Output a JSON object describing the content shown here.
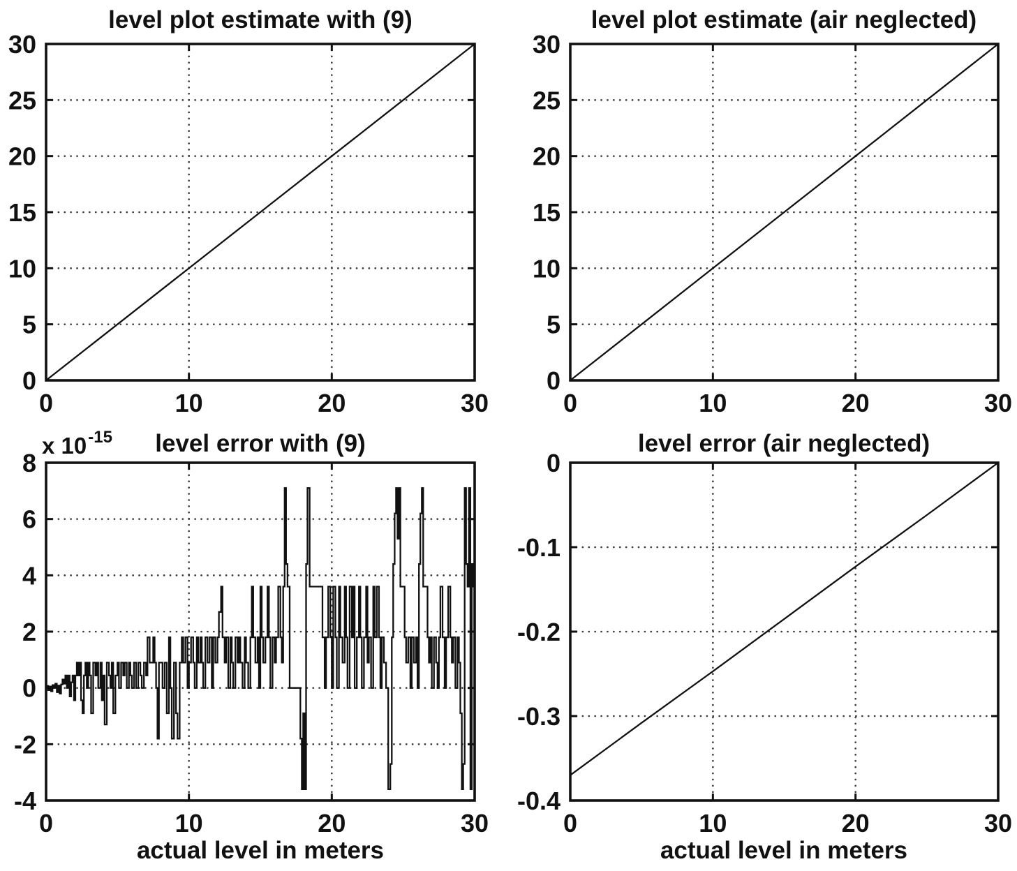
{
  "figure": {
    "background": "#ffffff",
    "ink_color": "#111111",
    "grid_color": "#3a3a3a"
  },
  "chart_data": [
    {
      "id": "level-plot-estimate-with-9",
      "type": "line",
      "title": "level plot estimate with (9)",
      "xlabel": "",
      "ylabel": "",
      "xlim": [
        0,
        30
      ],
      "ylim": [
        0,
        30
      ],
      "xticks": [
        0,
        10,
        20,
        30
      ],
      "yticks": [
        0,
        5,
        10,
        15,
        20,
        25,
        30
      ],
      "grid": true,
      "legend": "none",
      "series": [
        {
          "x": [
            0,
            5,
            10,
            15,
            20,
            25,
            30
          ],
          "y": [
            0,
            5,
            10,
            15,
            20,
            25,
            30
          ]
        }
      ]
    },
    {
      "id": "level-plot-estimate-air-neglected",
      "type": "line",
      "title": "level plot estimate (air neglected)",
      "xlabel": "",
      "ylabel": "",
      "xlim": [
        0,
        30
      ],
      "ylim": [
        0,
        30
      ],
      "xticks": [
        0,
        10,
        20,
        30
      ],
      "yticks": [
        0,
        5,
        10,
        15,
        20,
        25,
        30
      ],
      "grid": true,
      "legend": "none",
      "series": [
        {
          "x": [
            0,
            5,
            10,
            15,
            20,
            25,
            30
          ],
          "y": [
            0,
            5,
            10,
            15,
            20,
            25,
            30
          ]
        }
      ]
    },
    {
      "id": "level-error-with-9",
      "type": "line",
      "render": "step",
      "title": "level error with (9)",
      "y_scale_base": "x 10",
      "y_scale_exp": "-15",
      "y_unit": "1e-15",
      "xlabel": "actual level in meters",
      "ylabel": "",
      "xlim": [
        0,
        30
      ],
      "ylim": [
        -4,
        8
      ],
      "xticks": [
        0,
        10,
        20,
        30
      ],
      "yticks": [
        -4,
        -2,
        0,
        2,
        4,
        6,
        8
      ],
      "grid": true,
      "legend": "none",
      "series": [
        {
          "points": [
            [
              0,
              0
            ],
            [
              0.08,
              0.07
            ],
            [
              0.15,
              -0.08
            ],
            [
              0.25,
              0.05
            ],
            [
              0.35,
              -0.12
            ],
            [
              0.45,
              0.1
            ],
            [
              0.55,
              0
            ],
            [
              0.65,
              0.15
            ],
            [
              0.75,
              -0.15
            ],
            [
              0.85,
              0.08
            ],
            [
              0.95,
              -0.2
            ],
            [
              1.05,
              0.12
            ],
            [
              1.15,
              0.3
            ],
            [
              1.25,
              0.15
            ],
            [
              1.35,
              0.44
            ],
            [
              1.45,
              0
            ],
            [
              1.55,
              0.44
            ],
            [
              1.65,
              -0.3
            ],
            [
              1.75,
              0.2
            ],
            [
              1.85,
              0.44
            ],
            [
              1.95,
              -0.44
            ],
            [
              2.05,
              0.44
            ],
            [
              2.15,
              0.9
            ],
            [
              2.25,
              0.44
            ],
            [
              2.35,
              0.9
            ],
            [
              2.45,
              -0.44
            ],
            [
              2.55,
              -0.9
            ],
            [
              2.65,
              0.44
            ],
            [
              2.75,
              0.9
            ],
            [
              2.85,
              0
            ],
            [
              2.95,
              0.9
            ],
            [
              3.05,
              0.44
            ],
            [
              3.15,
              -0.9
            ],
            [
              3.3,
              0.9
            ],
            [
              3.45,
              0.44
            ],
            [
              3.55,
              0.9
            ],
            [
              3.65,
              0
            ],
            [
              3.8,
              0.9
            ],
            [
              3.9,
              -0.44
            ],
            [
              4.0,
              0.44
            ],
            [
              4.1,
              -1.3
            ],
            [
              4.25,
              0.9
            ],
            [
              4.4,
              0.44
            ],
            [
              4.5,
              0
            ],
            [
              4.6,
              0.9
            ],
            [
              4.7,
              -0.9
            ],
            [
              4.85,
              0.44
            ],
            [
              5.0,
              0.9
            ],
            [
              5.1,
              0
            ],
            [
              5.25,
              0.9
            ],
            [
              5.4,
              0.44
            ],
            [
              5.5,
              0.9
            ],
            [
              5.65,
              0
            ],
            [
              5.8,
              0.9
            ],
            [
              5.9,
              0.44
            ],
            [
              6.0,
              0
            ],
            [
              6.15,
              0.9
            ],
            [
              6.3,
              0
            ],
            [
              6.45,
              0.9
            ],
            [
              6.6,
              0.44
            ],
            [
              6.7,
              0
            ],
            [
              6.85,
              0.9
            ],
            [
              7.0,
              0.44
            ],
            [
              7.1,
              1.8
            ],
            [
              7.25,
              0.9
            ],
            [
              7.4,
              0.9
            ],
            [
              7.5,
              1.8
            ],
            [
              7.6,
              0.9
            ],
            [
              7.7,
              0
            ],
            [
              7.8,
              -1.8
            ],
            [
              7.9,
              0.9
            ],
            [
              8.0,
              0.9
            ],
            [
              8.15,
              0
            ],
            [
              8.3,
              0.9
            ],
            [
              8.45,
              -0.9
            ],
            [
              8.6,
              1.8
            ],
            [
              8.7,
              0
            ],
            [
              8.8,
              -1.8
            ],
            [
              8.95,
              0.9
            ],
            [
              9.1,
              -0.9
            ],
            [
              9.2,
              -1.8
            ],
            [
              9.35,
              0.9
            ],
            [
              9.5,
              1.8
            ],
            [
              9.6,
              0.9
            ],
            [
              9.75,
              1.8
            ],
            [
              9.9,
              0
            ],
            [
              10.0,
              0.9
            ],
            [
              10.15,
              1.8
            ],
            [
              10.3,
              0.9
            ],
            [
              10.4,
              0
            ],
            [
              10.55,
              1.8
            ],
            [
              10.65,
              0.9
            ],
            [
              10.8,
              1.8
            ],
            [
              10.9,
              0.9
            ],
            [
              11.0,
              0
            ],
            [
              11.15,
              1.8
            ],
            [
              11.3,
              0.9
            ],
            [
              11.45,
              1.8
            ],
            [
              11.6,
              0
            ],
            [
              11.7,
              1.8
            ],
            [
              11.85,
              0.9
            ],
            [
              12.0,
              1.8
            ],
            [
              12.1,
              2.7
            ],
            [
              12.25,
              3.6
            ],
            [
              12.35,
              1.8
            ],
            [
              12.5,
              0.9
            ],
            [
              12.6,
              1.8
            ],
            [
              12.75,
              0
            ],
            [
              12.9,
              1.8
            ],
            [
              13.0,
              0.9
            ],
            [
              13.1,
              0
            ],
            [
              13.25,
              1.8
            ],
            [
              13.4,
              0.9
            ],
            [
              13.5,
              1.8
            ],
            [
              13.6,
              0.9
            ],
            [
              13.75,
              0
            ],
            [
              13.9,
              1.8
            ],
            [
              14.0,
              0.9
            ],
            [
              14.15,
              0
            ],
            [
              14.3,
              1.8
            ],
            [
              14.4,
              3.6
            ],
            [
              14.5,
              1.8
            ],
            [
              14.65,
              0.9
            ],
            [
              14.8,
              1.8
            ],
            [
              14.9,
              0
            ],
            [
              15.0,
              3.6
            ],
            [
              15.1,
              1.8
            ],
            [
              15.2,
              0.9
            ],
            [
              15.35,
              1.8
            ],
            [
              15.5,
              3.6
            ],
            [
              15.6,
              1.8
            ],
            [
              15.7,
              0
            ],
            [
              15.85,
              1.8
            ],
            [
              16.0,
              0.9
            ],
            [
              16.1,
              1.8
            ],
            [
              16.25,
              3.6
            ],
            [
              16.4,
              1.8
            ],
            [
              16.5,
              0.9
            ],
            [
              16.6,
              3.6
            ],
            [
              16.7,
              7.1
            ],
            [
              16.8,
              4.4
            ],
            [
              16.9,
              3.6
            ],
            [
              17.05,
              0
            ],
            [
              17.3,
              0
            ],
            [
              17.55,
              0
            ],
            [
              17.8,
              -1.8
            ],
            [
              17.9,
              -3.6
            ],
            [
              18.0,
              -0.9
            ],
            [
              18.1,
              -3.6
            ],
            [
              18.2,
              4.4
            ],
            [
              18.3,
              7.1
            ],
            [
              18.45,
              3.6
            ],
            [
              18.7,
              3.6
            ],
            [
              18.95,
              3.6
            ],
            [
              19.2,
              3.6
            ],
            [
              19.35,
              1.8
            ],
            [
              19.5,
              0
            ],
            [
              19.6,
              1.8
            ],
            [
              19.75,
              3.6
            ],
            [
              19.9,
              1.8
            ],
            [
              20.0,
              0
            ],
            [
              20.1,
              3.6
            ],
            [
              20.25,
              1.8
            ],
            [
              20.35,
              0
            ],
            [
              20.5,
              3.6
            ],
            [
              20.6,
              1.8
            ],
            [
              20.75,
              0.9
            ],
            [
              20.9,
              3.6
            ],
            [
              21.0,
              1.8
            ],
            [
              21.1,
              0
            ],
            [
              21.25,
              3.6
            ],
            [
              21.4,
              1.8
            ],
            [
              21.5,
              3.6
            ],
            [
              21.6,
              0
            ],
            [
              21.75,
              1.8
            ],
            [
              21.9,
              3.6
            ],
            [
              22.0,
              1.8
            ],
            [
              22.1,
              0
            ],
            [
              22.25,
              1.8
            ],
            [
              22.4,
              3.6
            ],
            [
              22.5,
              0.9
            ],
            [
              22.6,
              1.8
            ],
            [
              22.75,
              0
            ],
            [
              22.9,
              3.6
            ],
            [
              23.0,
              1.8
            ],
            [
              23.15,
              3.6
            ],
            [
              23.3,
              1.8
            ],
            [
              23.4,
              0
            ],
            [
              23.5,
              1.8
            ],
            [
              23.65,
              0.9
            ],
            [
              23.8,
              0
            ],
            [
              23.95,
              -3.6
            ],
            [
              24.1,
              -2.7
            ],
            [
              24.2,
              1.8
            ],
            [
              24.3,
              4.4
            ],
            [
              24.4,
              6.2
            ],
            [
              24.5,
              7.1
            ],
            [
              24.6,
              5.3
            ],
            [
              24.7,
              7.1
            ],
            [
              24.8,
              3.6
            ],
            [
              24.95,
              3.6
            ],
            [
              25.1,
              1.8
            ],
            [
              25.2,
              0.9
            ],
            [
              25.35,
              1.8
            ],
            [
              25.5,
              0
            ],
            [
              25.6,
              1.8
            ],
            [
              25.75,
              0.9
            ],
            [
              25.9,
              1.8
            ],
            [
              26.0,
              0
            ],
            [
              26.1,
              4.4
            ],
            [
              26.2,
              6.2
            ],
            [
              26.3,
              7.1
            ],
            [
              26.4,
              3.6
            ],
            [
              26.55,
              3.6
            ],
            [
              26.7,
              1.8
            ],
            [
              26.8,
              0.9
            ],
            [
              26.9,
              1.8
            ],
            [
              27.0,
              0
            ],
            [
              27.15,
              1.8
            ],
            [
              27.3,
              0.9
            ],
            [
              27.4,
              0
            ],
            [
              27.5,
              1.8
            ],
            [
              27.6,
              3.6
            ],
            [
              27.75,
              1.8
            ],
            [
              27.9,
              0
            ],
            [
              28.0,
              1.8
            ],
            [
              28.15,
              3.6
            ],
            [
              28.3,
              1.8
            ],
            [
              28.4,
              0.9
            ],
            [
              28.5,
              1.8
            ],
            [
              28.65,
              0
            ],
            [
              28.8,
              1.8
            ],
            [
              28.9,
              0.9
            ],
            [
              29.0,
              -0.9
            ],
            [
              29.1,
              -3.6
            ],
            [
              29.2,
              -2.7
            ],
            [
              29.3,
              7.1
            ],
            [
              29.4,
              4.4
            ],
            [
              29.5,
              3.6
            ],
            [
              29.6,
              7.1
            ],
            [
              29.7,
              -3.6
            ],
            [
              29.8,
              4.4
            ],
            [
              29.9,
              3.6
            ],
            [
              30.0,
              3.6
            ]
          ]
        }
      ]
    },
    {
      "id": "level-error-air-neglected",
      "type": "line",
      "title": "level error (air neglected)",
      "xlabel": "actual level in meters",
      "ylabel": "",
      "xlim": [
        0,
        30
      ],
      "ylim": [
        -0.4,
        0
      ],
      "xticks": [
        0,
        10,
        20,
        30
      ],
      "yticks": [
        0,
        -0.1,
        -0.2,
        -0.3,
        -0.4
      ],
      "grid": true,
      "legend": "none",
      "series": [
        {
          "x": [
            0,
            5,
            10,
            15,
            20,
            25,
            30
          ],
          "y": [
            -0.37,
            -0.308,
            -0.247,
            -0.185,
            -0.123,
            -0.062,
            0
          ]
        }
      ]
    }
  ]
}
